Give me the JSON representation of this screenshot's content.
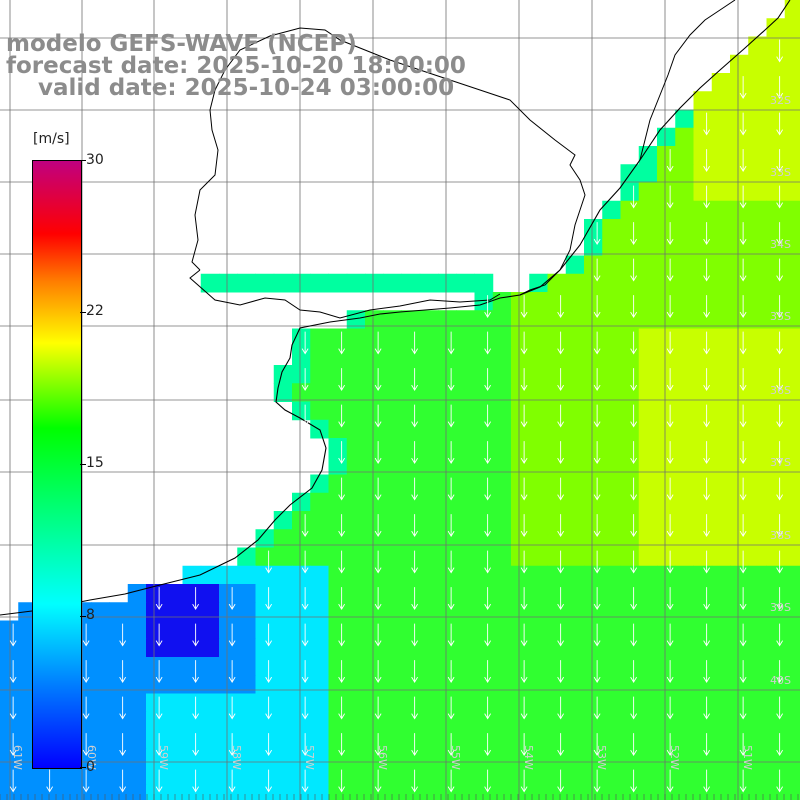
{
  "title": {
    "line1": "modelo GEFS-WAVE (NCEP)",
    "line2": "forecast date: 2025-10-20 18:00:00",
    "line3": "    valid date: 2025-10-24 03:00:00"
  },
  "colorbar": {
    "unit": "[m/s]",
    "ticks": [
      "30",
      "22",
      "15",
      "8",
      "0"
    ],
    "min": 0,
    "max": 30,
    "colors": [
      "#0000ff",
      "#0080ff",
      "#00ffff",
      "#00ff00",
      "#ffff00",
      "#ff8000",
      "#ff0000",
      "#c00080"
    ]
  },
  "lat_labels": [
    "32S",
    "33S",
    "34S",
    "35S",
    "36S",
    "37S",
    "38S",
    "39S",
    "40S"
  ],
  "lon_labels": [
    "61W",
    "60W",
    "59W",
    "58W",
    "57W",
    "56W",
    "55W",
    "54W",
    "53W",
    "52W",
    "51W"
  ],
  "field": {
    "variable": "wind speed",
    "arrow_direction": "southward",
    "colors": {
      "ocean_strong": "#c8ff00",
      "ocean_high": "#80ff00",
      "ocean_mid": "#30ff30",
      "shelf": "#00ffa0",
      "coast": "#00e8ff",
      "low": "#0090ff",
      "lowest": "#1010f0",
      "land": "#ffffff",
      "grid": "#707070",
      "coastline": "#000000",
      "arrow": "#ffffff"
    }
  }
}
